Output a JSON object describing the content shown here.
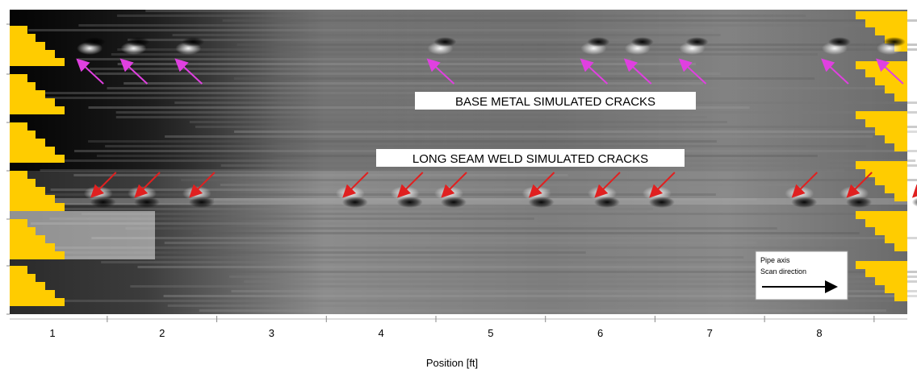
{
  "chart_data": {
    "type": "heatmap",
    "title": "",
    "xlabel": "Position [ft]",
    "ylabel": "",
    "xlim": [
      0.6,
      8.9
    ],
    "x_ticks": [
      1,
      2,
      3,
      4,
      5,
      6,
      7,
      8
    ],
    "x_tick_labels": [
      "1",
      "2",
      "3",
      "4",
      "5",
      "6",
      "7",
      "8"
    ],
    "colormap": "grayscale",
    "annotations": [
      {
        "text": "BASE METAL SIMULATED CRACKS",
        "arrow_color": "#e040e0",
        "x_positions": [
          1.2,
          1.6,
          2.1,
          4.4,
          5.8,
          6.2,
          6.7,
          8.0,
          8.5
        ]
      },
      {
        "text": "LONG SEAM WELD SIMULATED CRACKS",
        "arrow_color": "#e02020",
        "x_positions": [
          1.3,
          1.7,
          2.2,
          3.6,
          4.1,
          4.5,
          5.3,
          5.9,
          6.4,
          7.7,
          8.2,
          8.8
        ]
      }
    ],
    "legend": {
      "lines": [
        "Pipe axis",
        "Scan direction"
      ],
      "placement": "bottom-right"
    },
    "marker_color": "#ffcc00"
  }
}
